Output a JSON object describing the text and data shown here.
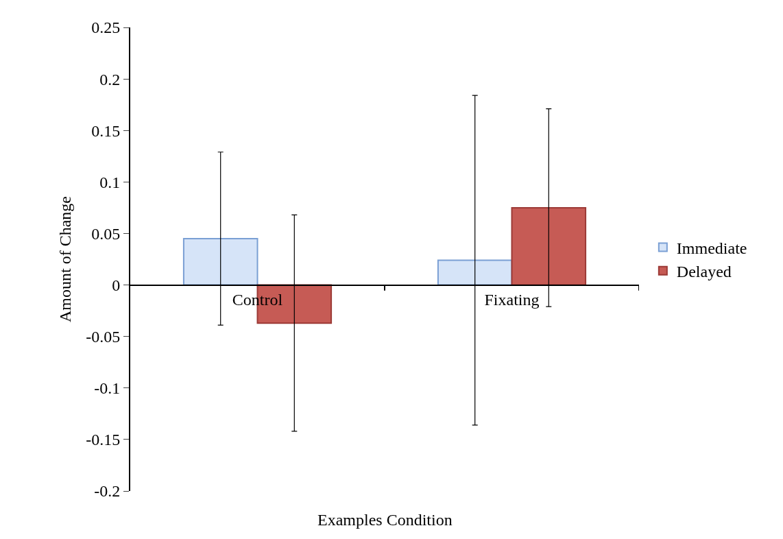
{
  "chart_data": {
    "type": "bar",
    "xlabel": "Examples Condition",
    "ylabel": "Amount of Change",
    "categories": [
      "Control",
      "Fixating"
    ],
    "series": [
      {
        "name": "Immediate",
        "color": "#d6e4f8",
        "values": [
          0.045,
          0.024
        ],
        "errors": [
          0.084,
          0.16
        ]
      },
      {
        "name": "Delayed",
        "color": "#c65b55",
        "values": [
          -0.037,
          0.075
        ],
        "errors": [
          0.105,
          0.096
        ]
      }
    ],
    "ylim": [
      -0.2,
      0.25
    ],
    "yticks": [
      {
        "value": -0.2,
        "label": "-0.2"
      },
      {
        "value": -0.15,
        "label": "-0.15"
      },
      {
        "value": -0.1,
        "label": "-0.1"
      },
      {
        "value": -0.05,
        "label": "-0.05"
      },
      0,
      0.05,
      0.1,
      0.15,
      0.2,
      0.25
    ],
    "legend": "right"
  }
}
